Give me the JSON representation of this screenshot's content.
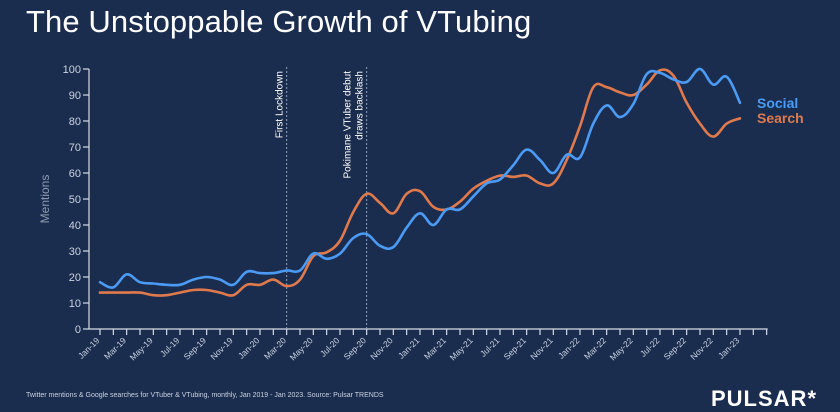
{
  "title": "The Unstoppable Growth of VTubing",
  "footnote": "Twitter mentions & Google searches for VTuber & VTubing, monthly, Jan 2019 - Jan 2023. Source: Pulsar TRENDS",
  "brand": "PULSAR*",
  "colors": {
    "background": "#1b2d4f",
    "social": "#4b9bf5",
    "search": "#e07a4c",
    "axis": "#d5dbe5",
    "tick_text": "#c9d2e0",
    "annotation_line": "#8fa0b8"
  },
  "chart_data": {
    "type": "line",
    "title": "The Unstoppable Growth of VTubing",
    "xlabel": "",
    "ylabel": "Mentions",
    "ylim": [
      0,
      100
    ],
    "yticks": [
      0,
      10,
      20,
      30,
      40,
      50,
      60,
      70,
      80,
      90,
      100
    ],
    "grid": false,
    "legend_placement": "right, inline at line ends",
    "x": [
      "Jan-19",
      "Feb-19",
      "Mar-19",
      "Apr-19",
      "May-19",
      "Jun-19",
      "Jul-19",
      "Aug-19",
      "Sep-19",
      "Oct-19",
      "Nov-19",
      "Dec-19",
      "Jan-20",
      "Feb-20",
      "Mar-20",
      "Apr-20",
      "May-20",
      "Jun-20",
      "Jul-20",
      "Aug-20",
      "Sep-20",
      "Oct-20",
      "Nov-20",
      "Dec-20",
      "Jan-21",
      "Feb-21",
      "Mar-21",
      "Apr-21",
      "May-21",
      "Jun-21",
      "Jul-21",
      "Aug-21",
      "Sep-21",
      "Oct-21",
      "Nov-21",
      "Dec-21",
      "Jan-22",
      "Feb-22",
      "Mar-22",
      "Apr-22",
      "May-22",
      "Jun-22",
      "Jul-22",
      "Aug-22",
      "Sep-22",
      "Oct-22",
      "Nov-22",
      "Dec-22",
      "Jan-23"
    ],
    "xtick_labels": [
      "Jan-19",
      "Mar-19",
      "May-19",
      "Jul-19",
      "Sep-19",
      "Nov-19",
      "Jan-20",
      "Mar-20",
      "May-20",
      "Jul-20",
      "Sep-20",
      "Nov-20",
      "Jan-21",
      "Mar-21",
      "May-21",
      "Jul-21",
      "Sep-21",
      "Nov-21",
      "Jan-22",
      "Mar-22",
      "May-22",
      "Jul-22",
      "Sep-22",
      "Nov-22",
      "Jan-23"
    ],
    "series": [
      {
        "name": "Social",
        "color": "#4b9bf5",
        "values": [
          18,
          16,
          21,
          18,
          17.5,
          17,
          17,
          19,
          20,
          19,
          17,
          22,
          21.5,
          21.5,
          22.5,
          22.5,
          29,
          27,
          29,
          35,
          36.5,
          32,
          31.5,
          39,
          44.5,
          40,
          46,
          46,
          51,
          56,
          57.5,
          63,
          69,
          65,
          60,
          67,
          66,
          79,
          86,
          81.5,
          86.5,
          98,
          98.5,
          96,
          95,
          100,
          94,
          97,
          87
        ]
      },
      {
        "name": "Search",
        "color": "#e07a4c",
        "values": [
          14,
          14,
          14,
          14,
          13,
          13,
          14,
          15,
          15,
          14,
          13,
          17,
          17,
          19,
          16.5,
          19,
          28,
          29.5,
          34,
          45,
          52,
          48.5,
          44.5,
          52,
          53,
          47,
          46,
          49,
          54,
          57,
          59,
          58.5,
          59,
          56,
          56,
          65,
          78,
          93,
          93,
          91,
          90,
          94,
          99.5,
          97.5,
          87,
          79,
          74,
          79,
          81
        ]
      }
    ],
    "annotations": [
      {
        "x": "Mar-20",
        "label": "First Lockdown",
        "style": "dotted vertical line"
      },
      {
        "x": "Sep-20",
        "label_lines": [
          "Pokimane VTuber debut",
          "draws backlash"
        ],
        "style": "dotted vertical line"
      }
    ]
  }
}
